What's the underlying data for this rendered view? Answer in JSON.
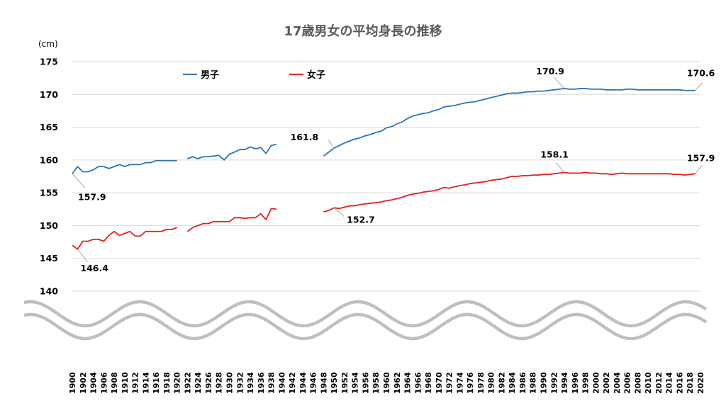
{
  "chart_data": {
    "type": "line",
    "title": "17歳男女の平均身長の推移",
    "y_unit": "(cm)",
    "ylim": [
      140,
      175
    ],
    "yticks": [
      140,
      145,
      150,
      155,
      160,
      165,
      170,
      175
    ],
    "xlim": [
      1900,
      2020
    ],
    "xticks": [
      1900,
      1902,
      1904,
      1906,
      1908,
      1910,
      1912,
      1914,
      1916,
      1918,
      1920,
      1922,
      1924,
      1926,
      1928,
      1930,
      1932,
      1934,
      1936,
      1938,
      1940,
      1942,
      1944,
      1946,
      1948,
      1950,
      1952,
      1954,
      1956,
      1958,
      1960,
      1962,
      1964,
      1966,
      1968,
      1970,
      1972,
      1974,
      1976,
      1978,
      1980,
      1982,
      1984,
      1986,
      1988,
      1990,
      1992,
      1994,
      1996,
      1998,
      2000,
      2002,
      2004,
      2006,
      2008,
      2010,
      2012,
      2014,
      2016,
      2018,
      2020
    ],
    "grid": true,
    "axis_break": true,
    "legend_position": "top-left",
    "series": [
      {
        "name": "男子",
        "color": "#2E75B6",
        "segments": [
          {
            "x": [
              1900,
              1901,
              1902,
              1903,
              1904,
              1905,
              1906,
              1907,
              1908,
              1909,
              1910,
              1911,
              1912,
              1913,
              1914,
              1915,
              1916,
              1917,
              1918,
              1919,
              1920
            ],
            "y": [
              157.9,
              159.0,
              158.2,
              158.2,
              158.5,
              159.0,
              159.0,
              158.7,
              159.0,
              159.3,
              159.0,
              159.3,
              159.3,
              159.3,
              159.6,
              159.6,
              159.9,
              159.9,
              159.9,
              159.9,
              159.9
            ]
          },
          {
            "x": [
              1922,
              1923,
              1924,
              1925,
              1926,
              1927,
              1928,
              1929,
              1930,
              1931,
              1932,
              1933,
              1934,
              1935,
              1936,
              1937,
              1938,
              1939
            ],
            "y": [
              160.2,
              160.5,
              160.2,
              160.5,
              160.5,
              160.6,
              160.7,
              160.0,
              160.9,
              161.2,
              161.6,
              161.6,
              162.0,
              161.7,
              161.9,
              161.0,
              162.2,
              162.4
            ]
          },
          {
            "x": [
              1948,
              1949,
              1950,
              1951,
              1952,
              1953,
              1954,
              1955,
              1956,
              1957,
              1958,
              1959,
              1960,
              1961,
              1962,
              1963,
              1964,
              1965,
              1966,
              1967,
              1968,
              1969,
              1970,
              1971,
              1972,
              1973,
              1974,
              1975,
              1976,
              1977,
              1978,
              1979,
              1980,
              1981,
              1982,
              1983,
              1984,
              1985,
              1986,
              1987,
              1988,
              1989,
              1990,
              1991,
              1992,
              1993,
              1994,
              1995,
              1996,
              1997,
              1998,
              1999,
              2000,
              2001,
              2002,
              2003,
              2004,
              2005,
              2006,
              2007,
              2008,
              2009,
              2010,
              2011,
              2012,
              2013,
              2014,
              2015,
              2016,
              2017,
              2018,
              2019
            ],
            "y": [
              160.6,
              161.2,
              161.8,
              162.2,
              162.6,
              162.9,
              163.2,
              163.4,
              163.7,
              163.9,
              164.2,
              164.4,
              164.9,
              165.1,
              165.5,
              165.8,
              166.3,
              166.7,
              166.9,
              167.1,
              167.2,
              167.5,
              167.7,
              168.1,
              168.2,
              168.3,
              168.5,
              168.7,
              168.8,
              168.9,
              169.1,
              169.3,
              169.5,
              169.7,
              169.9,
              170.1,
              170.2,
              170.2,
              170.3,
              170.4,
              170.4,
              170.5,
              170.5,
              170.6,
              170.7,
              170.8,
              170.9,
              170.8,
              170.8,
              170.9,
              170.9,
              170.8,
              170.8,
              170.8,
              170.7,
              170.7,
              170.7,
              170.7,
              170.8,
              170.8,
              170.7,
              170.7,
              170.7,
              170.7,
              170.7,
              170.7,
              170.7,
              170.7,
              170.7,
              170.6,
              170.6,
              170.6
            ]
          }
        ],
        "annotations": [
          {
            "label": "157.9",
            "x": 1900,
            "y": 157.9
          },
          {
            "label": "161.8",
            "x": 1950,
            "y": 161.8
          },
          {
            "label": "170.9",
            "x": 1994,
            "y": 170.9
          },
          {
            "label": "170.6",
            "x": 2019,
            "y": 170.6
          }
        ]
      },
      {
        "name": "女子",
        "color": "#E02020",
        "segments": [
          {
            "x": [
              1900,
              1901,
              1902,
              1903,
              1904,
              1905,
              1906,
              1907,
              1908,
              1909,
              1910,
              1911,
              1912,
              1913,
              1914,
              1915,
              1916,
              1917,
              1918,
              1919,
              1920
            ],
            "y": [
              147.0,
              146.4,
              147.6,
              147.6,
              147.9,
              147.9,
              147.6,
              148.5,
              149.1,
              148.5,
              148.8,
              149.1,
              148.4,
              148.4,
              149.1,
              149.1,
              149.1,
              149.1,
              149.4,
              149.4,
              149.7
            ]
          },
          {
            "x": [
              1922,
              1923,
              1924,
              1925,
              1926,
              1927,
              1928,
              1929,
              1930,
              1931,
              1932,
              1933,
              1934,
              1935,
              1936,
              1937,
              1938,
              1939
            ],
            "y": [
              149.1,
              149.7,
              150.0,
              150.3,
              150.3,
              150.6,
              150.6,
              150.6,
              150.6,
              151.2,
              151.2,
              151.1,
              151.2,
              151.2,
              151.8,
              150.9,
              152.6,
              152.5
            ]
          },
          {
            "x": [
              1948,
              1949,
              1950,
              1951,
              1952,
              1953,
              1954,
              1955,
              1956,
              1957,
              1958,
              1959,
              1960,
              1961,
              1962,
              1963,
              1964,
              1965,
              1966,
              1967,
              1968,
              1969,
              1970,
              1971,
              1972,
              1973,
              1974,
              1975,
              1976,
              1977,
              1978,
              1979,
              1980,
              1981,
              1982,
              1983,
              1984,
              1985,
              1986,
              1987,
              1988,
              1989,
              1990,
              1991,
              1992,
              1993,
              1994,
              1995,
              1996,
              1997,
              1998,
              1999,
              2000,
              2001,
              2002,
              2003,
              2004,
              2005,
              2006,
              2007,
              2008,
              2009,
              2010,
              2011,
              2012,
              2013,
              2014,
              2015,
              2016,
              2017,
              2018,
              2019
            ],
            "y": [
              152.1,
              152.3,
              152.7,
              152.6,
              152.8,
              153.0,
              153.0,
              153.2,
              153.3,
              153.4,
              153.5,
              153.6,
              153.8,
              153.9,
              154.1,
              154.3,
              154.6,
              154.8,
              154.9,
              155.1,
              155.2,
              155.3,
              155.5,
              155.8,
              155.7,
              155.9,
              156.1,
              156.2,
              156.4,
              156.5,
              156.6,
              156.7,
              156.9,
              157.0,
              157.1,
              157.3,
              157.5,
              157.5,
              157.6,
              157.6,
              157.7,
              157.7,
              157.8,
              157.8,
              157.9,
              158.0,
              158.1,
              158.0,
              158.0,
              158.0,
              158.1,
              158.0,
              158.0,
              157.9,
              157.9,
              157.8,
              157.9,
              158.0,
              157.9,
              157.9,
              157.9,
              157.9,
              157.9,
              157.9,
              157.9,
              157.9,
              157.9,
              157.8,
              157.8,
              157.7,
              157.8,
              157.9
            ]
          }
        ],
        "annotations": [
          {
            "label": "146.4",
            "x": 1901,
            "y": 146.4
          },
          {
            "label": "152.7",
            "x": 1950,
            "y": 152.7
          },
          {
            "label": "158.1",
            "x": 1994,
            "y": 158.1
          },
          {
            "label": "157.9",
            "x": 2019,
            "y": 157.9
          }
        ]
      }
    ]
  }
}
